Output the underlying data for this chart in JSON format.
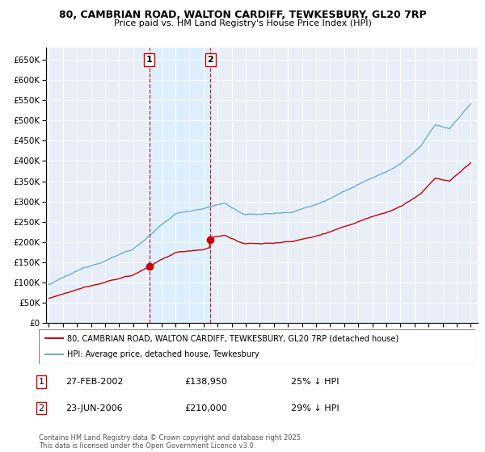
{
  "title_line1": "80, CAMBRIAN ROAD, WALTON CARDIFF, TEWKESBURY, GL20 7RP",
  "title_line2": "Price paid vs. HM Land Registry's House Price Index (HPI)",
  "legend_line1": "80, CAMBRIAN ROAD, WALTON CARDIFF, TEWKESBURY, GL20 7RP (detached house)",
  "legend_line2": "HPI: Average price, detached house, Tewkesbury",
  "purchase1_date": "27-FEB-2002",
  "purchase1_price": "£138,950",
  "purchase1_note": "25% ↓ HPI",
  "purchase2_date": "23-JUN-2006",
  "purchase2_price": "£210,000",
  "purchase2_note": "29% ↓ HPI",
  "copyright_text": "Contains HM Land Registry data © Crown copyright and database right 2025.\nThis data is licensed under the Open Government Licence v3.0.",
  "hpi_color": "#6baed6",
  "price_color": "#cc0000",
  "vline_color": "#cc0000",
  "shade_color": "#ddeeff",
  "purchase1_x": 2002.15,
  "purchase2_x": 2006.48,
  "ylim_min": 0,
  "ylim_max": 680000,
  "xlim_min": 1994.8,
  "xlim_max": 2025.5,
  "bg_color": "#e8eef8"
}
